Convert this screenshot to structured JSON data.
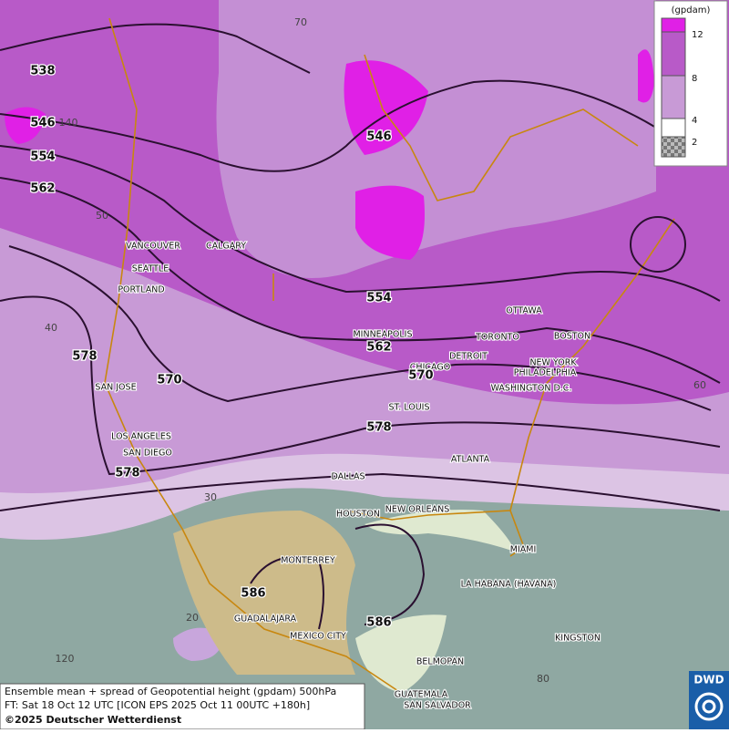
{
  "legend": {
    "title": "(gpdam)",
    "levels": [
      12,
      8,
      4,
      2
    ]
  },
  "caption": [
    "Ensemble mean + spread of Geopotential height (gpdam) 500hPa",
    "FT: Sat 18 Oct 12 UTC [ICON EPS 2025 Oct 11 00UTC +180h]",
    "©2025 Deutscher Wetterdienst"
  ],
  "logo": "DWD",
  "cities": [
    "VANCOUVER",
    "CALGARY",
    "SEATTLE",
    "PORTLAND",
    "SAN JOSE",
    "LOS ANGELES",
    "SAN DIEGO",
    "MINNEAPOLIS",
    "TORONTO",
    "OTTAWA",
    "BOSTON",
    "DETROIT",
    "CHICAGO",
    "NEW YORK",
    "PHILADELPHIA",
    "WASHINGTON D.C.",
    "ST. LOUIS",
    "ATLANTA",
    "DALLAS",
    "HOUSTON",
    "NEW ORLEANS",
    "MIAMI",
    "MONTERREY",
    "LA HABANA (HAVANA)",
    "GUADALAJARA",
    "MEXICO CITY",
    "KINGSTON",
    "BELMOPAN",
    "GUATEMALA",
    "SAN SALVADOR"
  ],
  "contour_labels": [
    538,
    546,
    546,
    554,
    562,
    554,
    562,
    570,
    570,
    578,
    578,
    578,
    586,
    586
  ],
  "grid_labels": [
    70,
    140,
    50,
    40,
    30,
    20,
    120,
    60,
    80
  ]
}
